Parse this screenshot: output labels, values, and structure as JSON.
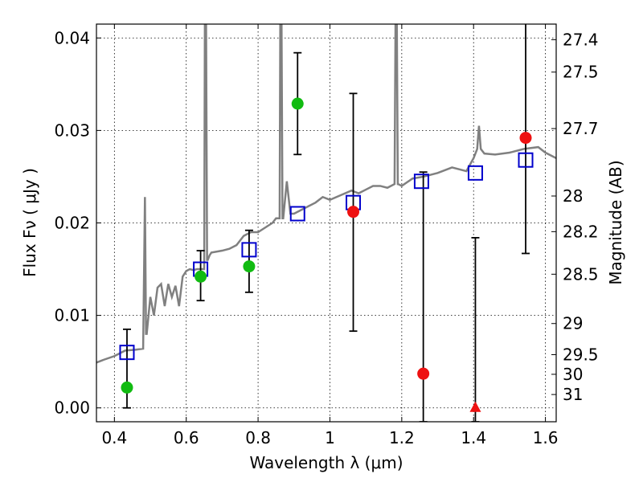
{
  "chart_data": {
    "type": "scatter",
    "xlabel": "Wavelength  λ (μm)",
    "ylabel": "Flux  Fν  ( μJy )",
    "y2label": "Magnitude (AB)",
    "xlim": [
      0.35,
      1.63
    ],
    "ylim": [
      -0.0015,
      0.0415
    ],
    "x_ticks": [
      0.4,
      0.6,
      0.8,
      1.0,
      1.2,
      1.4,
      1.6
    ],
    "x_tick_labels": [
      "0.4",
      "0.6",
      "0.8",
      "1",
      "1.2",
      "1.4",
      "1.6"
    ],
    "y_ticks": [
      0.0,
      0.01,
      0.02,
      0.03,
      0.04
    ],
    "y_tick_labels": [
      "0.00",
      "0.01",
      "0.02",
      "0.03",
      "0.04"
    ],
    "mag_ticks": [
      27.4,
      27.5,
      27.7,
      28,
      28.2,
      28.5,
      29,
      29.5,
      30,
      31
    ],
    "mag_tick_labels": [
      "27.4",
      "27.5",
      "27.7",
      "28",
      "28.2",
      "28.5",
      "29",
      "29.5",
      "30",
      "31"
    ],
    "grid": true,
    "colors": {
      "model_line": "#808080",
      "model_points": "#0000cc",
      "green_points": "#11bb11",
      "red_points": "#ee1111",
      "errorbar": "#000000"
    },
    "series": [
      {
        "kind": "line",
        "x": [
          0.35,
          0.37,
          0.4,
          0.43,
          0.46,
          0.48,
          0.485,
          0.488,
          0.49,
          0.5,
          0.51,
          0.52,
          0.53,
          0.54,
          0.55,
          0.56,
          0.57,
          0.58,
          0.59,
          0.6,
          0.61,
          0.62,
          0.63,
          0.64,
          0.65,
          0.652,
          0.655,
          0.658,
          0.66,
          0.665,
          0.67,
          0.7,
          0.72,
          0.74,
          0.76,
          0.78,
          0.8,
          0.82,
          0.84,
          0.85,
          0.86,
          0.862,
          0.865,
          0.868,
          0.87,
          0.88,
          0.89,
          0.9,
          0.92,
          0.94,
          0.96,
          0.98,
          1.0,
          1.03,
          1.06,
          1.08,
          1.1,
          1.12,
          1.14,
          1.16,
          1.18,
          1.183,
          1.186,
          1.189,
          1.19,
          1.2,
          1.23,
          1.26,
          1.3,
          1.34,
          1.38,
          1.4,
          1.41,
          1.415,
          1.42,
          1.43,
          1.46,
          1.5,
          1.54,
          1.58,
          1.6,
          1.63
        ],
        "y": [
          0.0049,
          0.0052,
          0.0056,
          0.0062,
          0.0063,
          0.0064,
          0.0228,
          0.008,
          0.008,
          0.012,
          0.01,
          0.013,
          0.0134,
          0.011,
          0.0134,
          0.012,
          0.0132,
          0.011,
          0.0142,
          0.0148,
          0.015,
          0.0149,
          0.015,
          0.015,
          0.015,
          0.044,
          0.044,
          0.016,
          0.016,
          0.0165,
          0.0168,
          0.017,
          0.0172,
          0.0176,
          0.0186,
          0.019,
          0.019,
          0.0195,
          0.02,
          0.0205,
          0.0205,
          0.044,
          0.044,
          0.0205,
          0.0205,
          0.0245,
          0.021,
          0.021,
          0.0214,
          0.0218,
          0.0222,
          0.0228,
          0.0225,
          0.023,
          0.0235,
          0.0232,
          0.0236,
          0.024,
          0.024,
          0.0238,
          0.0242,
          0.044,
          0.044,
          0.0242,
          0.0242,
          0.024,
          0.0248,
          0.025,
          0.0254,
          0.026,
          0.0256,
          0.027,
          0.028,
          0.0305,
          0.028,
          0.0275,
          0.0274,
          0.0276,
          0.028,
          0.0282,
          0.0276,
          0.027
        ]
      },
      {
        "kind": "open_squares",
        "x": [
          0.435,
          0.64,
          0.775,
          0.91,
          1.065,
          1.255,
          1.405,
          1.545
        ],
        "y": [
          0.006,
          0.015,
          0.0171,
          0.021,
          0.0222,
          0.0245,
          0.0254,
          0.0268
        ]
      },
      {
        "kind": "green_points_with_errors",
        "x": [
          0.435,
          0.64,
          0.775,
          0.91
        ],
        "y": [
          0.0022,
          0.0142,
          0.0153,
          0.0329
        ],
        "err_low": [
          0.0022,
          0.0026,
          0.0028,
          0.0055
        ],
        "err_high": [
          0.0063,
          0.0028,
          0.0039,
          0.0055
        ]
      },
      {
        "kind": "red_points_with_errors",
        "x": [
          1.065,
          1.26,
          1.545
        ],
        "y": [
          0.0212,
          0.0037,
          0.0292
        ],
        "err_low": [
          0.0129,
          0.0052,
          0.0125
        ],
        "err_high": [
          0.0128,
          0.0218,
          0.014
        ]
      },
      {
        "kind": "red_upper_limit",
        "x": [
          1.405
        ],
        "y": [
          0.0
        ],
        "err_low": [
          0.0015
        ],
        "err_high": [
          0.0184
        ]
      }
    ]
  }
}
